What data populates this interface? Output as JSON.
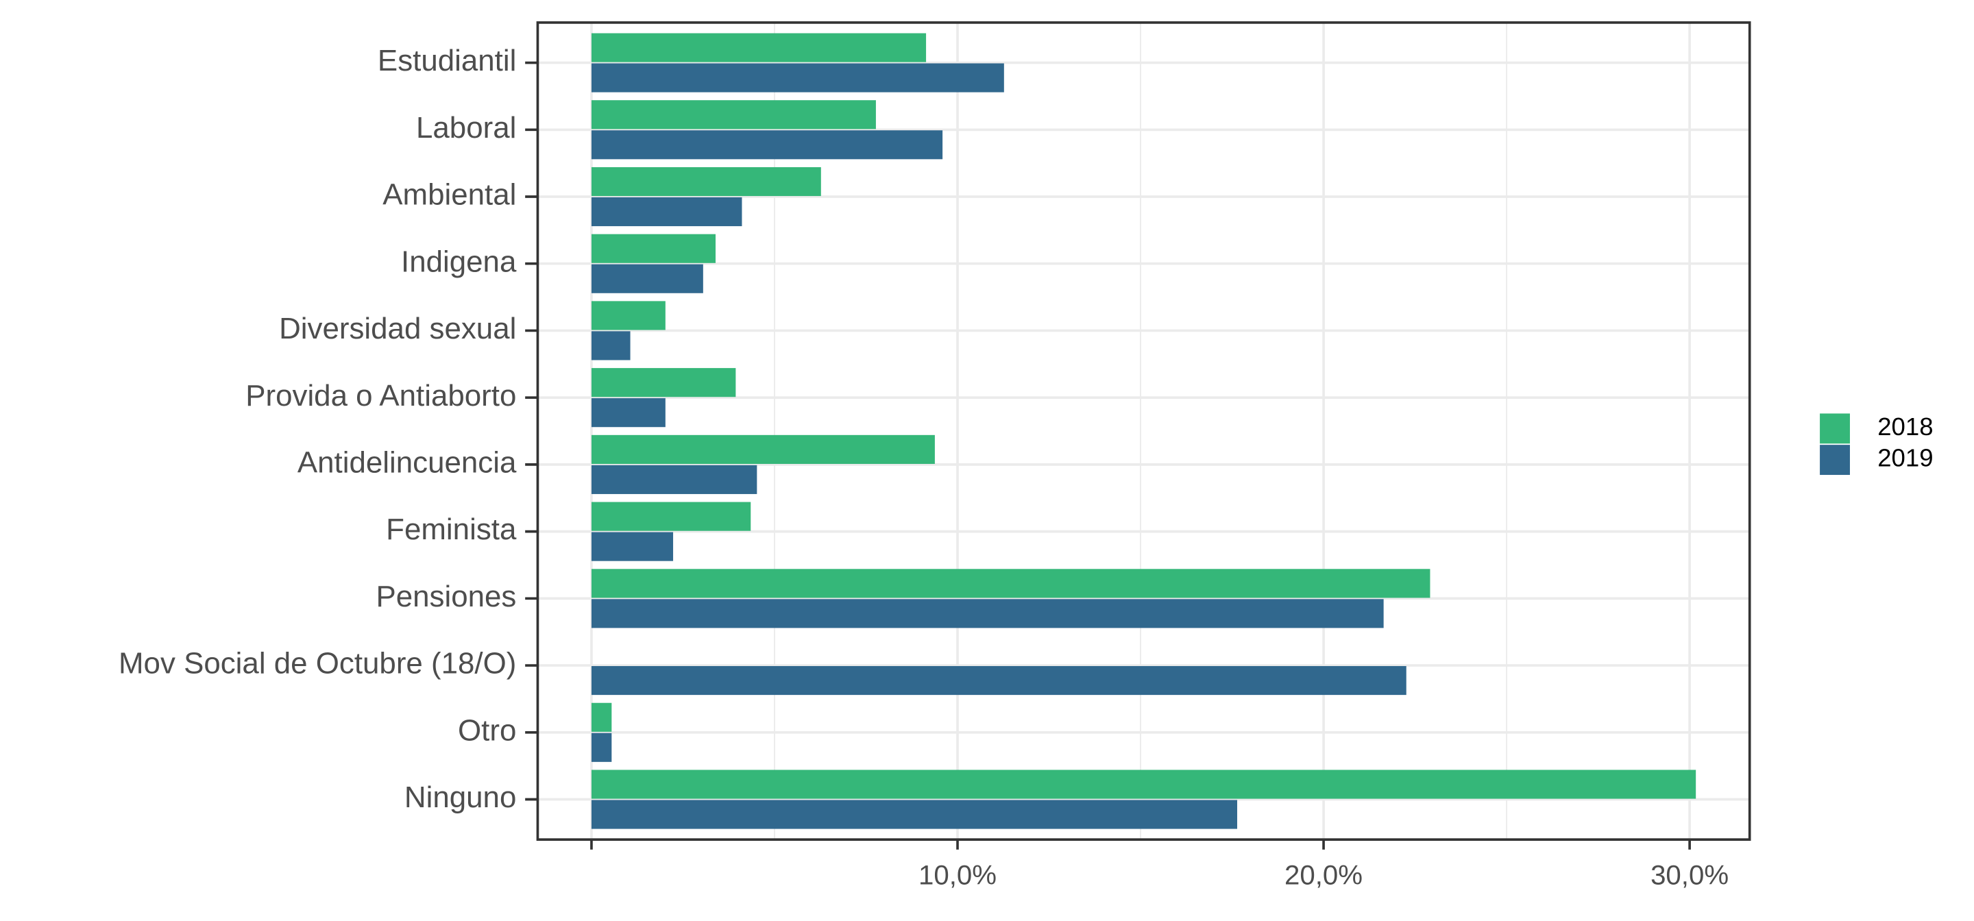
{
  "chart_data": {
    "type": "bar",
    "orientation": "horizontal",
    "categories": [
      "Estudiantil",
      "Laboral",
      "Ambiental",
      "Indigena",
      "Diversidad sexual",
      "Provida o Antiaborto",
      "Antidelincuencia",
      "Feminista",
      "Pensiones",
      "Mov Social de Octubre (18/O)",
      "Otro",
      "Ninguno"
    ],
    "series": [
      {
        "name": "2018",
        "color": "#35b779",
        "values": [
          9.14,
          7.77,
          6.27,
          3.39,
          2.02,
          3.94,
          9.38,
          4.35,
          22.91,
          null,
          0.55,
          30.17
        ]
      },
      {
        "name": "2019",
        "color": "#31688e",
        "values": [
          11.27,
          9.59,
          4.11,
          3.05,
          1.06,
          2.02,
          4.52,
          2.23,
          21.64,
          22.26,
          0.55,
          17.64
        ]
      }
    ],
    "xlim": [
      -1.47,
      31.64
    ],
    "xticks": [
      {
        "value": 0,
        "label": null
      },
      {
        "value": 10,
        "label": "10,0%"
      },
      {
        "value": 20,
        "label": "20,0%"
      },
      {
        "value": 30,
        "label": "30,0%"
      }
    ],
    "xminor": [
      5,
      15,
      25
    ],
    "grid": true,
    "legend": "right"
  }
}
